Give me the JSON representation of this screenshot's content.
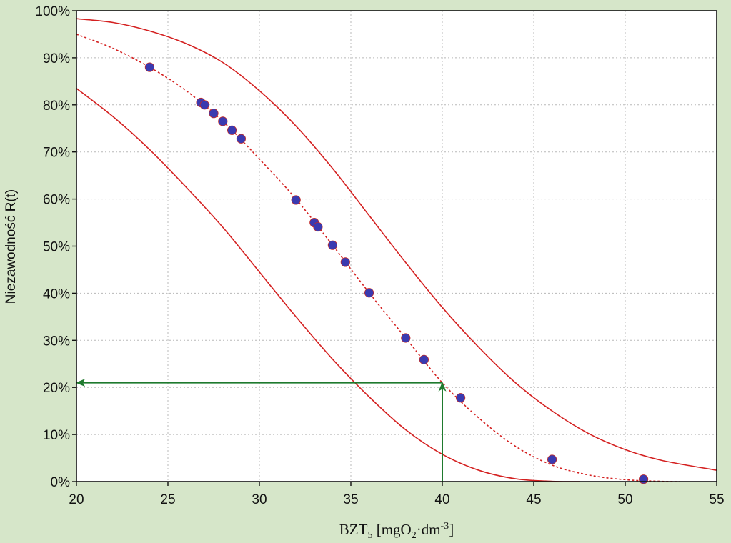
{
  "chart_data": {
    "type": "scatter",
    "title": "",
    "xlabel": {
      "base": "BZT",
      "base_sub": "5",
      "bracket_open": " [mgO",
      "o_sub": "2",
      "dot_dm": "·dm",
      "exp": "-3",
      "bracket_close": "]"
    },
    "ylabel": "Niezawodność R(t)",
    "xlim": [
      20,
      55
    ],
    "ylim": [
      0,
      100
    ],
    "x_ticks": [
      20,
      25,
      30,
      35,
      40,
      45,
      50,
      55
    ],
    "y_ticks": [
      0,
      10,
      20,
      30,
      40,
      50,
      60,
      70,
      80,
      90,
      100
    ],
    "y_tick_suffix": "%",
    "grid": true,
    "series": [
      {
        "kind": "points",
        "x": [
          24,
          26.8,
          27,
          27.5,
          28,
          28.5,
          29,
          32,
          33,
          33.2,
          34,
          34.7,
          36,
          38,
          39,
          41,
          46,
          51
        ],
        "y": [
          88,
          80.5,
          80,
          78.2,
          76.5,
          74.6,
          72.8,
          59.8,
          55,
          54.1,
          50.2,
          46.6,
          40.1,
          30.5,
          25.9,
          17.8,
          4.7,
          0.5
        ],
        "color": "#3a3ab0",
        "edge_color": "#c02a2a"
      },
      {
        "kind": "fit-dashed",
        "x": [
          20,
          22,
          24,
          26,
          28,
          30,
          32,
          34,
          36,
          38,
          40,
          42,
          44,
          46,
          48,
          50,
          52,
          53
        ],
        "y": [
          95,
          92,
          88,
          83,
          76.5,
          68.5,
          60,
          50.2,
          40.1,
          30.5,
          21,
          13.5,
          7.5,
          3.5,
          1.4,
          0.4,
          0.05,
          0
        ],
        "color": "#d42020"
      },
      {
        "kind": "upper-bound",
        "x": [
          20,
          22,
          24,
          26,
          28,
          30,
          32,
          34,
          36,
          38,
          40,
          42,
          44,
          46,
          48,
          50,
          52,
          55
        ],
        "y": [
          98.3,
          97.5,
          95.7,
          93,
          89,
          83,
          75.5,
          66.5,
          56.5,
          46.5,
          37,
          28.5,
          21,
          15,
          10.2,
          6.8,
          4.5,
          2.4
        ],
        "color": "#d42020"
      },
      {
        "kind": "lower-bound",
        "x": [
          20,
          22,
          24,
          26,
          28,
          30,
          32,
          34,
          36,
          38,
          40,
          42,
          44,
          46,
          47.5
        ],
        "y": [
          83.5,
          77.5,
          70.5,
          62.5,
          54,
          44.5,
          35,
          26,
          18,
          11,
          5.8,
          2.4,
          0.6,
          0.05,
          0
        ],
        "color": "#d42020"
      }
    ],
    "annotations": [
      {
        "kind": "arrow-up",
        "from": [
          40,
          0
        ],
        "to": [
          40,
          21
        ],
        "color": "#1f7a2e"
      },
      {
        "kind": "arrow-left",
        "from": [
          40,
          21
        ],
        "to": [
          20,
          21
        ],
        "color": "#1f7a2e"
      }
    ]
  }
}
